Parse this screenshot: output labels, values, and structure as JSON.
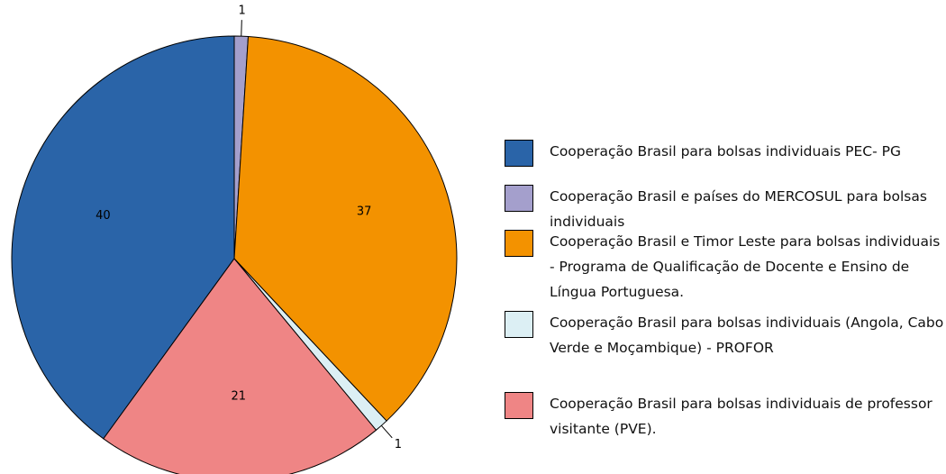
{
  "chart_data": {
    "type": "pie",
    "categories": [
      "Cooperação Brasil para bolsas individuais PEC- PG",
      "Cooperação Brasil e países do MERCOSUL para bolsas individuais",
      "Cooperação Brasil e Timor Leste para bolsas individuais - Programa de Qualificação de Docente e Ensino de Língua Portuguesa.",
      "Cooperação Brasil para bolsas individuais (Angola, Cabo Verde e Moçambique) - PROFOR",
      "Cooperação Brasil para bolsas individuais de professor visitante (PVE)."
    ],
    "values": [
      40,
      1,
      37,
      1,
      21
    ],
    "colors": [
      "#2a64a8",
      "#a49fcc",
      "#f39200",
      "#dceff4",
      "#ef8585"
    ]
  }
}
